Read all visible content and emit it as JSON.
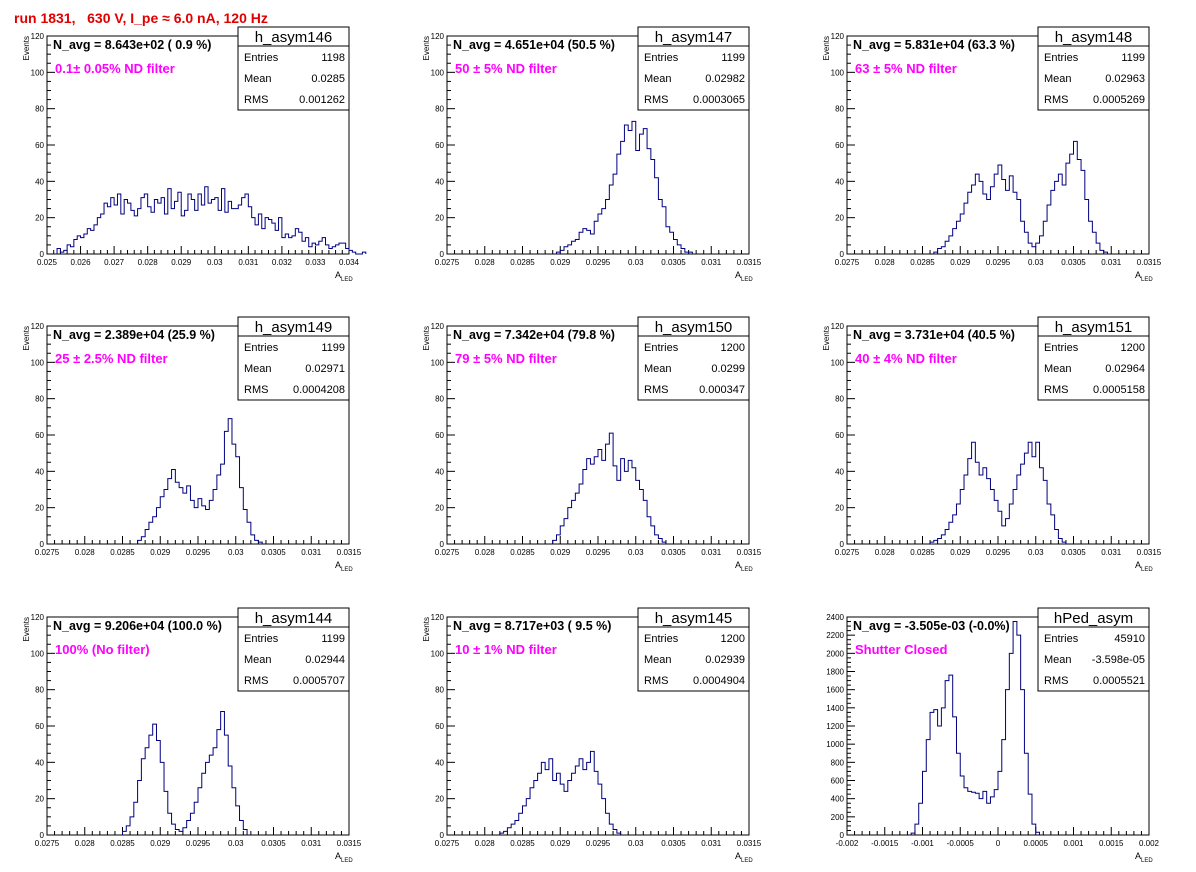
{
  "page": {
    "title": "run 1831,   630 V, I_pe ≈ 6.0 nA, 120 Hz"
  },
  "stats_labels": {
    "entries": "Entries",
    "mean": "Mean",
    "rms": "RMS"
  },
  "colors": {
    "hist_line": "#000080",
    "magenta": "#ff00ff",
    "title_red": "#e00000"
  },
  "chart_data": [
    {
      "type": "histogram",
      "name": "h_asym146",
      "navg": "N_avg = 8.643e+02 ( 0.9 %)",
      "note": "0.1± 0.05% ND filter",
      "entries": "1198",
      "mean": "0.0285",
      "rms": "0.001262",
      "xlabel": "A",
      "xlabel_sub": "LED",
      "ylabel": "Events",
      "xlim": [
        0.025,
        0.034
      ],
      "ylim": [
        0,
        120
      ],
      "xticks": [
        "0.025",
        "0.026",
        "0.027",
        "0.028",
        "0.029",
        "0.03",
        "0.031",
        "0.032",
        "0.033",
        "0.034"
      ],
      "yticks": [
        "0",
        "20",
        "40",
        "60",
        "80",
        "100",
        "120"
      ],
      "bins_x0": 0.0253,
      "bin_w": 0.0001,
      "values": [
        3,
        1,
        2,
        5,
        4,
        8,
        10,
        9,
        11,
        14,
        13,
        16,
        20,
        22,
        28,
        26,
        31,
        27,
        33,
        22,
        30,
        28,
        24,
        21,
        25,
        31,
        33,
        26,
        23,
        30,
        28,
        31,
        22,
        36,
        25,
        29,
        34,
        21,
        24,
        33,
        30,
        24,
        33,
        27,
        37,
        28,
        30,
        31,
        24,
        36,
        23,
        29,
        25,
        25,
        27,
        31,
        33,
        26,
        20,
        16,
        22,
        14,
        20,
        19,
        17,
        13,
        20,
        9,
        11,
        9,
        10,
        14,
        12,
        7,
        9,
        4,
        6,
        5,
        7,
        9,
        5,
        3,
        4,
        5,
        6,
        6,
        3,
        2,
        1,
        0,
        0,
        1
      ]
    },
    {
      "type": "histogram",
      "name": "h_asym147",
      "navg": "N_avg = 4.651e+04 (50.5 %)",
      "note": "50 ± 5% ND filter",
      "entries": "1199",
      "mean": "0.02982",
      "rms": "0.0003065",
      "xlabel": "A",
      "xlabel_sub": "LED",
      "ylabel": "Events",
      "xlim": [
        0.0275,
        0.0315
      ],
      "ylim": [
        0,
        120
      ],
      "xticks": [
        "0.0275",
        "0.028",
        "0.0285",
        "0.029",
        "0.0295",
        "0.03",
        "0.0305",
        "0.031",
        "0.0315"
      ],
      "yticks": [
        "0",
        "20",
        "40",
        "60",
        "80",
        "100",
        "120"
      ],
      "bins_x0": 0.02895,
      "bin_w": 5e-05,
      "values": [
        1,
        2,
        4,
        5,
        7,
        8,
        12,
        14,
        13,
        11,
        18,
        22,
        25,
        30,
        38,
        44,
        55,
        62,
        71,
        68,
        73,
        57,
        66,
        69,
        58,
        52,
        42,
        30,
        26,
        15,
        12,
        8,
        5,
        3,
        1,
        1
      ]
    },
    {
      "type": "histogram",
      "name": "h_asym148",
      "navg": "N_avg = 5.831e+04 (63.3 %)",
      "note": "63 ± 5% ND filter",
      "entries": "1199",
      "mean": "0.02963",
      "rms": "0.0005269",
      "xlabel": "A",
      "xlabel_sub": "LED",
      "ylabel": "Events",
      "xlim": [
        0.0275,
        0.0315
      ],
      "ylim": [
        0,
        120
      ],
      "xticks": [
        "0.0275",
        "0.028",
        "0.0285",
        "0.029",
        "0.0295",
        "0.03",
        "0.0305",
        "0.031",
        "0.0315"
      ],
      "yticks": [
        "0",
        "20",
        "40",
        "60",
        "80",
        "100",
        "120"
      ],
      "bins_x0": 0.02865,
      "bin_w": 5e-05,
      "values": [
        1,
        3,
        4,
        7,
        10,
        14,
        18,
        22,
        28,
        34,
        38,
        44,
        40,
        33,
        30,
        37,
        44,
        49,
        41,
        35,
        43,
        34,
        30,
        18,
        12,
        6,
        4,
        6,
        10,
        18,
        27,
        35,
        40,
        44,
        38,
        50,
        55,
        62,
        52,
        46,
        30,
        18,
        12,
        6,
        2,
        1
      ]
    },
    {
      "type": "histogram",
      "name": "h_asym149",
      "navg": "N_avg = 2.389e+04 (25.9 %)",
      "note": "25 ± 2.5% ND filter",
      "entries": "1199",
      "mean": "0.02971",
      "rms": "0.0004208",
      "xlabel": "A",
      "xlabel_sub": "LED",
      "ylabel": "Events",
      "xlim": [
        0.0275,
        0.0315
      ],
      "ylim": [
        0,
        120
      ],
      "xticks": [
        "0.0275",
        "0.028",
        "0.0285",
        "0.029",
        "0.0295",
        "0.03",
        "0.0305",
        "0.031",
        "0.0315"
      ],
      "yticks": [
        "0",
        "20",
        "40",
        "60",
        "80",
        "100",
        "120"
      ],
      "bins_x0": 0.0287,
      "bin_w": 5e-05,
      "values": [
        2,
        4,
        8,
        12,
        15,
        20,
        26,
        30,
        36,
        41,
        34,
        31,
        28,
        32,
        24,
        20,
        25,
        21,
        19,
        24,
        30,
        38,
        44,
        62,
        69,
        55,
        48,
        31,
        19,
        12,
        5,
        2,
        1
      ]
    },
    {
      "type": "histogram",
      "name": "h_asym150",
      "navg": "N_avg = 7.342e+04 (79.8 %)",
      "note": "79 ± 5% ND filter",
      "entries": "1200",
      "mean": "0.0299",
      "rms": "0.000347",
      "xlabel": "A",
      "xlabel_sub": "LED",
      "ylabel": "Events",
      "xlim": [
        0.0275,
        0.0315
      ],
      "ylim": [
        0,
        120
      ],
      "xticks": [
        "0.0275",
        "0.028",
        "0.0285",
        "0.029",
        "0.0295",
        "0.03",
        "0.0305",
        "0.031",
        "0.0315"
      ],
      "yticks": [
        "0",
        "20",
        "40",
        "60",
        "80",
        "100",
        "120"
      ],
      "bins_x0": 0.0289,
      "bin_w": 5e-05,
      "values": [
        2,
        5,
        10,
        14,
        20,
        24,
        28,
        33,
        41,
        47,
        44,
        48,
        52,
        46,
        55,
        61,
        43,
        35,
        47,
        40,
        46,
        42,
        35,
        30,
        24,
        15,
        10,
        5,
        3,
        1
      ]
    },
    {
      "type": "histogram",
      "name": "h_asym151",
      "navg": "N_avg = 3.731e+04 (40.5 %)",
      "note": "40 ± 4% ND filter",
      "entries": "1200",
      "mean": "0.02964",
      "rms": "0.0005158",
      "xlabel": "A",
      "xlabel_sub": "LED",
      "ylabel": "Events",
      "xlim": [
        0.0275,
        0.0315
      ],
      "ylim": [
        0,
        120
      ],
      "xticks": [
        "0.0275",
        "0.028",
        "0.0285",
        "0.029",
        "0.0295",
        "0.03",
        "0.0305",
        "0.031",
        "0.0315"
      ],
      "yticks": [
        "0",
        "20",
        "40",
        "60",
        "80",
        "100",
        "120"
      ],
      "bins_x0": 0.0286,
      "bin_w": 5e-05,
      "values": [
        1,
        2,
        3,
        5,
        8,
        12,
        16,
        22,
        30,
        38,
        47,
        56,
        45,
        38,
        42,
        36,
        30,
        24,
        18,
        10,
        14,
        22,
        30,
        38,
        44,
        50,
        56,
        48,
        56,
        42,
        35,
        22,
        16,
        8,
        3,
        1
      ]
    },
    {
      "type": "histogram",
      "name": "h_asym144",
      "navg": "N_avg = 9.206e+04 (100.0 %)",
      "note": "100% (No filter)",
      "entries": "1199",
      "mean": "0.02944",
      "rms": "0.0005707",
      "xlabel": "A",
      "xlabel_sub": "LED",
      "ylabel": "Events",
      "xlim": [
        0.0275,
        0.0315
      ],
      "ylim": [
        0,
        120
      ],
      "xticks": [
        "0.0275",
        "0.028",
        "0.0285",
        "0.029",
        "0.0295",
        "0.03",
        "0.0305",
        "0.031",
        "0.0315"
      ],
      "yticks": [
        "0",
        "20",
        "40",
        "60",
        "80",
        "100",
        "120"
      ],
      "bins_x0": 0.0285,
      "bin_w": 5e-05,
      "values": [
        2,
        5,
        10,
        18,
        30,
        42,
        48,
        55,
        61,
        52,
        40,
        24,
        12,
        6,
        3,
        2,
        4,
        8,
        12,
        18,
        26,
        34,
        40,
        44,
        48,
        58,
        68,
        55,
        38,
        26,
        16,
        8,
        3
      ]
    },
    {
      "type": "histogram",
      "name": "h_asym145",
      "navg": "N_avg = 8.717e+03 ( 9.5 %)",
      "note": "10 ± 1% ND filter",
      "entries": "1200",
      "mean": "0.02939",
      "rms": "0.0004904",
      "xlabel": "A",
      "xlabel_sub": "LED",
      "ylabel": "Events",
      "xlim": [
        0.0275,
        0.0315
      ],
      "ylim": [
        0,
        120
      ],
      "xticks": [
        "0.0275",
        "0.028",
        "0.0285",
        "0.029",
        "0.0295",
        "0.03",
        "0.0305",
        "0.031",
        "0.0315"
      ],
      "yticks": [
        "0",
        "20",
        "40",
        "60",
        "80",
        "100",
        "120"
      ],
      "bins_x0": 0.0282,
      "bin_w": 5e-05,
      "values": [
        1,
        2,
        4,
        6,
        8,
        12,
        16,
        20,
        26,
        30,
        34,
        40,
        36,
        42,
        30,
        34,
        28,
        24,
        30,
        34,
        38,
        42,
        36,
        40,
        46,
        35,
        28,
        20,
        12,
        6,
        3,
        1
      ]
    },
    {
      "type": "histogram",
      "name": "hPed_asym",
      "navg": "N_avg = -3.505e-03 (-0.0%)",
      "note": "Shutter Closed",
      "entries": "45910",
      "mean": "-3.598e-05",
      "rms": "0.0005521",
      "xlabel": "A",
      "xlabel_sub": "LED",
      "ylabel": "",
      "xlim": [
        -0.002,
        0.002
      ],
      "ylim": [
        0,
        2400
      ],
      "xticks": [
        "-0.002",
        "-0.0015",
        "-0.001",
        "-0.0005",
        "0",
        "0.0005",
        "0.001",
        "0.0015",
        "0.002"
      ],
      "yticks": [
        "0",
        "200",
        "400",
        "600",
        "800",
        "1000",
        "1200",
        "1400",
        "1600",
        "1800",
        "2000",
        "2200",
        "2400"
      ],
      "bins_x0": -0.00115,
      "bin_w": 5e-05,
      "values": [
        20,
        120,
        350,
        700,
        1050,
        1350,
        1380,
        1200,
        1400,
        1700,
        1760,
        1300,
        900,
        650,
        520,
        480,
        470,
        460,
        400,
        480,
        350,
        420,
        500,
        700,
        1050,
        1600,
        2000,
        2350,
        2200,
        1600,
        900,
        450,
        120,
        30
      ]
    }
  ]
}
